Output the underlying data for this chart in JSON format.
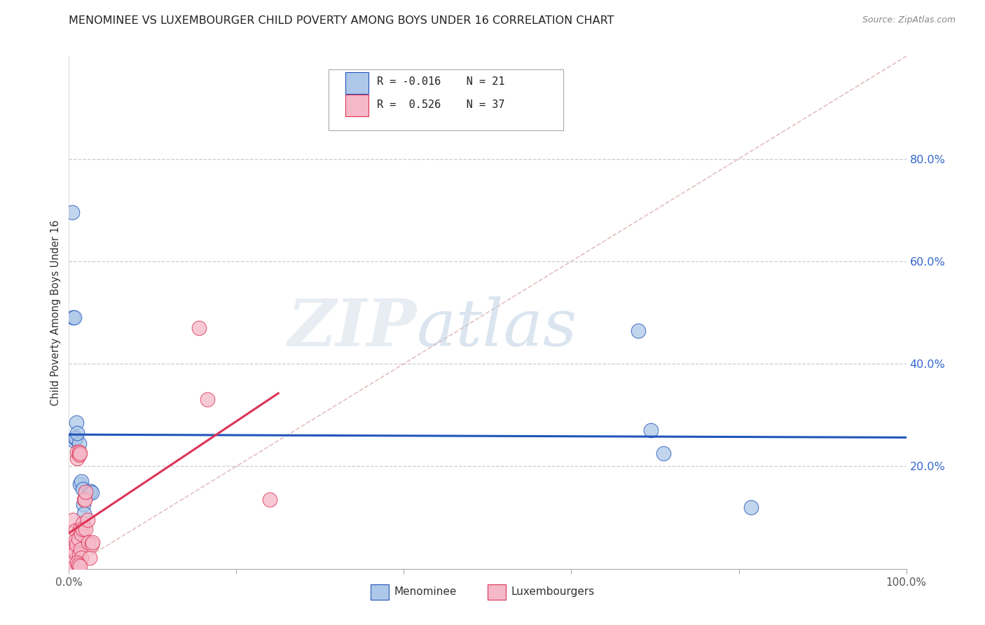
{
  "title": "MENOMINEE VS LUXEMBOURGER CHILD POVERTY AMONG BOYS UNDER 16 CORRELATION CHART",
  "source": "Source: ZipAtlas.com",
  "ylabel": "Child Poverty Among Boys Under 16",
  "right_yticks": [
    "80.0%",
    "60.0%",
    "40.0%",
    "20.0%"
  ],
  "right_ytick_vals": [
    0.8,
    0.6,
    0.4,
    0.2
  ],
  "watermark_zip": "ZIP",
  "watermark_atlas": "atlas",
  "menominee_color": "#adc8e8",
  "luxembourger_color": "#f5b8c8",
  "trend_menominee_color": "#2255bb",
  "trend_luxembourger_color": "#dd3355",
  "diagonal_color": "#e0b8b8",
  "menominee_x": [
    0.004,
    0.005,
    0.006,
    0.006,
    0.007,
    0.008,
    0.012,
    0.013,
    0.015,
    0.016,
    0.017,
    0.018,
    0.025,
    0.026,
    0.027,
    0.68,
    0.695,
    0.71,
    0.815,
    0.009,
    0.01
  ],
  "menominee_y": [
    0.695,
    0.49,
    0.49,
    0.25,
    0.255,
    0.255,
    0.245,
    0.165,
    0.17,
    0.155,
    0.125,
    0.108,
    0.148,
    0.152,
    0.148,
    0.465,
    0.27,
    0.225,
    0.12,
    0.285,
    0.265
  ],
  "luxembourger_x": [
    0.002,
    0.003,
    0.004,
    0.005,
    0.006,
    0.007,
    0.008,
    0.008,
    0.009,
    0.01,
    0.01,
    0.011,
    0.012,
    0.012,
    0.012,
    0.013,
    0.013,
    0.014,
    0.015,
    0.015,
    0.016,
    0.016,
    0.018,
    0.019,
    0.02,
    0.02,
    0.022,
    0.023,
    0.025,
    0.027,
    0.028,
    0.155,
    0.165,
    0.24,
    0.01,
    0.011,
    0.013
  ],
  "luxembourger_y": [
    0.01,
    0.008,
    0.025,
    0.095,
    0.038,
    0.032,
    0.075,
    0.055,
    0.048,
    0.215,
    0.228,
    0.058,
    0.228,
    0.222,
    0.028,
    0.225,
    0.078,
    0.038,
    0.022,
    0.068,
    0.088,
    0.078,
    0.135,
    0.135,
    0.15,
    0.078,
    0.095,
    0.052,
    0.022,
    0.048,
    0.052,
    0.47,
    0.33,
    0.135,
    0.012,
    0.008,
    0.005
  ],
  "xlim": [
    0.0,
    1.0
  ],
  "ylim": [
    0.0,
    1.0
  ],
  "menominee_trend_x": [
    0.0,
    1.0
  ],
  "luxembourger_trend_x_max": 0.25
}
